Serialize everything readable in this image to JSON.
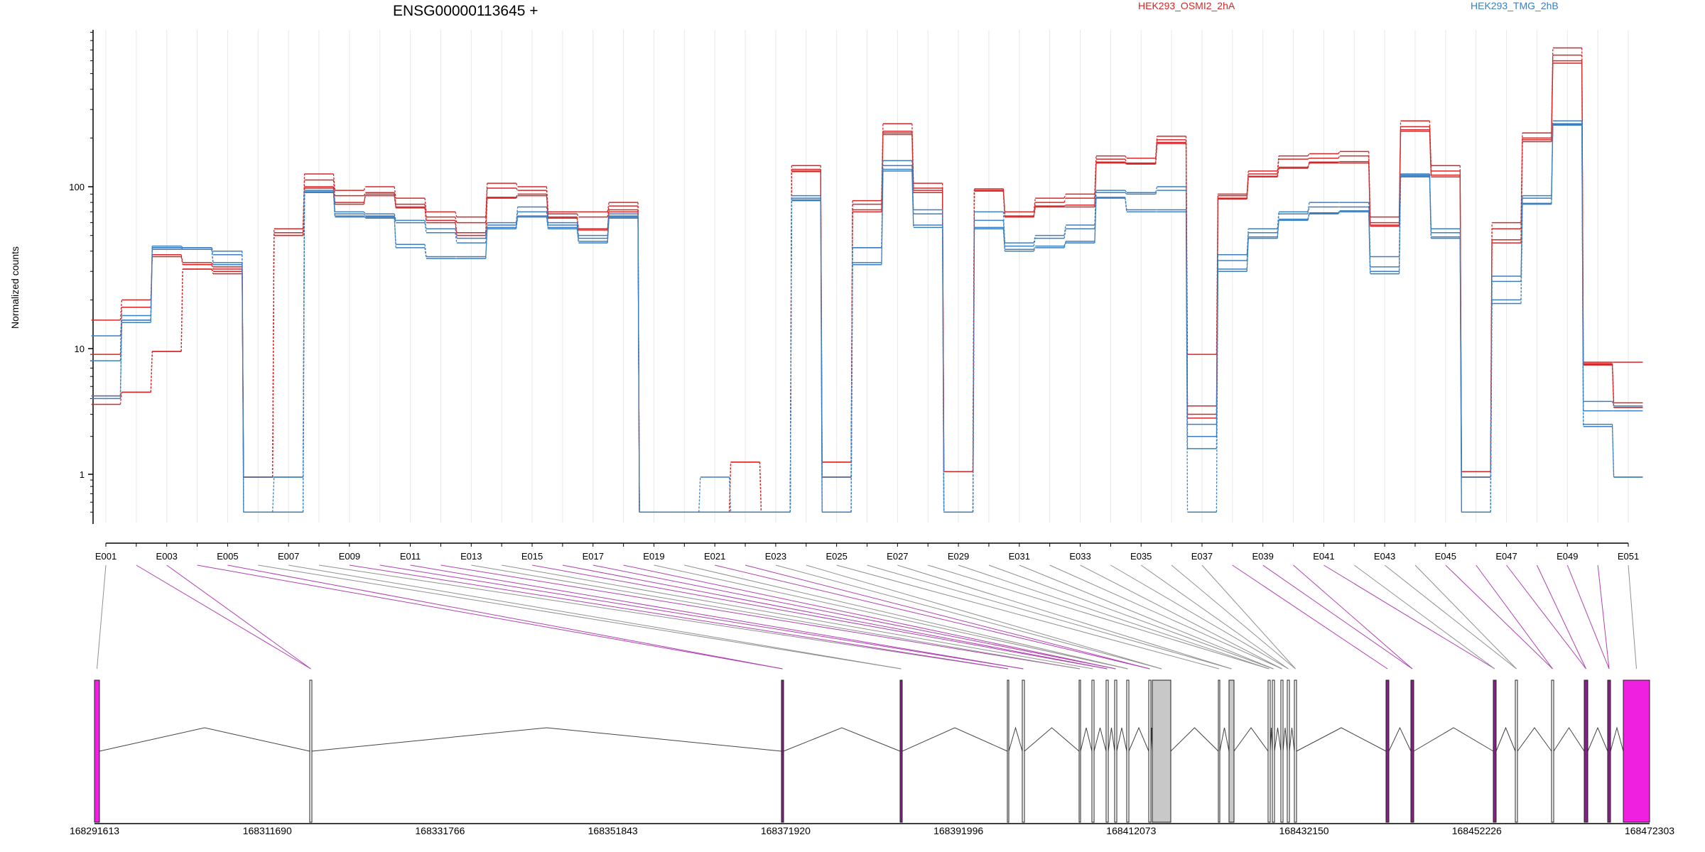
{
  "chart_data": {
    "type": "line",
    "title": "ENSG00000113645 +",
    "ylabel": "Normalized counts",
    "yscale": "log",
    "ylim": [
      0.5,
      1000
    ],
    "yticks": [
      1,
      10,
      100
    ],
    "ytick_labels": [
      "1",
      "10",
      "100"
    ],
    "legend": [
      {
        "name": "HEK293_OSMI2_2hA",
        "color": "#d62728"
      },
      {
        "name": "HEK293_TMG_2hB",
        "color": "#3b7fc0"
      }
    ],
    "categories": [
      "E001",
      "E002",
      "E003",
      "E004",
      "E005",
      "E006",
      "E007",
      "E008",
      "E009",
      "E010",
      "E011",
      "E012",
      "E013",
      "E014",
      "E015",
      "E016",
      "E017",
      "E018",
      "E019",
      "E020",
      "E021",
      "E022",
      "E023",
      "E024",
      "E025",
      "E026",
      "E027",
      "E028",
      "E029",
      "E030",
      "E031",
      "E032",
      "E033",
      "E034",
      "E035",
      "E036",
      "E037",
      "E038",
      "E039",
      "E040",
      "E041",
      "E042",
      "E043",
      "E044",
      "E045",
      "E046",
      "E047",
      "E048",
      "E049",
      "E050",
      "E051"
    ],
    "series": [
      {
        "group": "HEK293_OSMI2_2hA",
        "color": "#d62728",
        "values": [
          15,
          20,
          38,
          34,
          32,
          0.95,
          55,
          120,
          95,
          100,
          85,
          70,
          65,
          105,
          100,
          70,
          70,
          80,
          0.5,
          0.5,
          0.5,
          1.25,
          0.5,
          135,
          1.25,
          82,
          245,
          105,
          1.05,
          97,
          70,
          85,
          90,
          155,
          150,
          205,
          9,
          90,
          125,
          155,
          160,
          165,
          65,
          255,
          135,
          1.05,
          60,
          215,
          720,
          7.8,
          7.8
        ]
      },
      {
        "group": "HEK293_OSMI2_2hA",
        "color": "#d62728",
        "values": [
          9,
          18,
          37,
          33,
          31,
          0.95,
          52,
          110,
          88,
          92,
          78,
          65,
          60,
          98,
          95,
          68,
          65,
          76,
          0.5,
          0.5,
          0.5,
          0.5,
          0.5,
          128,
          1.25,
          78,
          220,
          98,
          1.05,
          95,
          65,
          80,
          85,
          148,
          140,
          195,
          3.5,
          88,
          120,
          148,
          150,
          155,
          60,
          235,
          125,
          1.05,
          55,
          200,
          650,
          7.6,
          3.7
        ]
      },
      {
        "group": "HEK293_OSMI2_2hA",
        "color": "#d62728",
        "values": [
          4.2,
          4.5,
          9.5,
          31,
          30,
          0.95,
          50,
          98,
          78,
          90,
          75,
          62,
          52,
          85,
          88,
          65,
          55,
          72,
          0.5,
          0.5,
          0.5,
          1.25,
          0.5,
          125,
          0.95,
          70,
          210,
          92,
          1.05,
          95,
          65,
          75,
          75,
          140,
          138,
          185,
          3,
          85,
          115,
          130,
          140,
          140,
          58,
          220,
          115,
          0.95,
          45,
          190,
          580,
          7.5,
          3.4
        ]
      },
      {
        "group": "HEK293_OSMI2_2hA",
        "color": "#d62728",
        "values": [
          3.6,
          4.5,
          9.5,
          31,
          29,
          0.95,
          50,
          100,
          80,
          88,
          74,
          60,
          50,
          86,
          90,
          64,
          54,
          70,
          0.5,
          0.5,
          0.5,
          0.5,
          0.5,
          124,
          0.95,
          72,
          215,
          95,
          1.05,
          94,
          66,
          76,
          77,
          142,
          139,
          188,
          2.8,
          84,
          116,
          132,
          142,
          143,
          57,
          225,
          118,
          0.95,
          47,
          195,
          600,
          7.4,
          3.4
        ]
      },
      {
        "group": "HEK293_TMG_2hB",
        "color": "#3b7fc0",
        "values": [
          12,
          16,
          43,
          42,
          40,
          0.5,
          0.95,
          95,
          70,
          68,
          62,
          55,
          48,
          60,
          75,
          60,
          50,
          68,
          0.5,
          0.5,
          0.5,
          0.5,
          0.5,
          88,
          0.5,
          42,
          145,
          72,
          0.5,
          70,
          45,
          50,
          58,
          95,
          92,
          100,
          2.5,
          38,
          55,
          70,
          80,
          80,
          37,
          120,
          55,
          0.5,
          28,
          88,
          255,
          3.8,
          3.5
        ]
      },
      {
        "group": "HEK293_TMG_2hB",
        "color": "#3b7fc0",
        "values": [
          8,
          15,
          42,
          42,
          38,
          0.95,
          0.95,
          93,
          68,
          66,
          60,
          52,
          45,
          58,
          70,
          58,
          48,
          66,
          0.5,
          0.5,
          0.95,
          0.5,
          0.5,
          85,
          0.95,
          42,
          135,
          68,
          0.5,
          62,
          43,
          48,
          55,
          92,
          90,
          95,
          2,
          35,
          52,
          68,
          75,
          75,
          32,
          118,
          52,
          0.95,
          26,
          85,
          245,
          3.2,
          3.2
        ]
      },
      {
        "group": "HEK293_TMG_2hB",
        "color": "#3b7fc0",
        "values": [
          4.2,
          14.5,
          41,
          41,
          33,
          0.5,
          0.5,
          92,
          65,
          65,
          42,
          36,
          36,
          55,
          65,
          55,
          45,
          64,
          0.5,
          0.5,
          0.5,
          0.5,
          0.5,
          82,
          0.5,
          33,
          125,
          56,
          0.5,
          55,
          40,
          42,
          45,
          85,
          70,
          70,
          1.6,
          30,
          48,
          62,
          68,
          70,
          30,
          115,
          48,
          0.5,
          19,
          78,
          240,
          2.4,
          0.95
        ]
      },
      {
        "group": "HEK293_TMG_2hB",
        "color": "#3b7fc0",
        "values": [
          4,
          15,
          42,
          41,
          34,
          0.5,
          0.5,
          93,
          66,
          64,
          44,
          37,
          37,
          56,
          66,
          56,
          46,
          65,
          0.5,
          0.5,
          0.5,
          0.5,
          0.5,
          83,
          0.5,
          34,
          128,
          58,
          0.5,
          56,
          41,
          43,
          46,
          86,
          72,
          72,
          0.5,
          31,
          49,
          63,
          69,
          71,
          29,
          116,
          49,
          0.5,
          20,
          79,
          242,
          2.5,
          0.95
        ]
      }
    ],
    "x_axis_label_every": 2,
    "genome_coordinates": [
      "168291613",
      "168311690",
      "168331766",
      "168351843",
      "168371920",
      "168391996",
      "168412073",
      "168432150",
      "168452226",
      "168472303"
    ]
  },
  "colors": {
    "group_a": "#d62728",
    "group_b": "#3b7fc0",
    "exon_highlight": "#f020e0",
    "exon_grey": "#c8c8c8",
    "connector_grey": "#909090",
    "connector_purple": "#b040b0"
  }
}
